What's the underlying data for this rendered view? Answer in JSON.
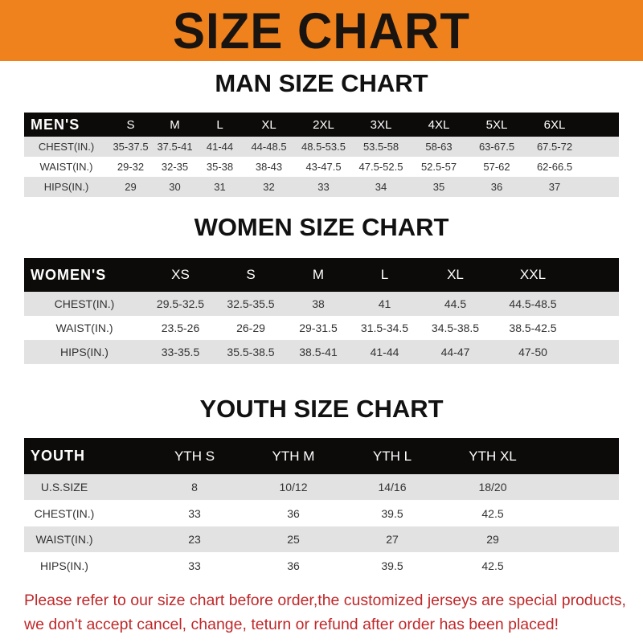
{
  "banner": {
    "title": "SIZE CHART",
    "color": "#f0821e"
  },
  "men": {
    "title": "MAN SIZE CHART",
    "header": [
      "MEN'S",
      "S",
      "M",
      "L",
      "XL",
      "2XL",
      "3XL",
      "4XL",
      "5XL",
      "6XL"
    ],
    "rows": [
      [
        "CHEST(IN.)",
        "35-37.5",
        "37.5-41",
        "41-44",
        "44-48.5",
        "48.5-53.5",
        "53.5-58",
        "58-63",
        "63-67.5",
        "67.5-72"
      ],
      [
        "WAIST(IN.)",
        "29-32",
        "32-35",
        "35-38",
        "38-43",
        "43-47.5",
        "47.5-52.5",
        "52.5-57",
        "57-62",
        "62-66.5"
      ],
      [
        "HIPS(IN.)",
        "29",
        "30",
        "31",
        "32",
        "33",
        "34",
        "35",
        "36",
        "37"
      ]
    ]
  },
  "women": {
    "title": "WOMEN SIZE CHART",
    "header": [
      "WOMEN'S",
      "XS",
      "S",
      "M",
      "L",
      "XL",
      "XXL"
    ],
    "rows": [
      [
        "CHEST(IN.)",
        "29.5-32.5",
        "32.5-35.5",
        "38",
        "41",
        "44.5",
        "44.5-48.5"
      ],
      [
        "WAIST(IN.)",
        "23.5-26",
        "26-29",
        "29-31.5",
        "31.5-34.5",
        "34.5-38.5",
        "38.5-42.5"
      ],
      [
        "HIPS(IN.)",
        "33-35.5",
        "35.5-38.5",
        "38.5-41",
        "41-44",
        "44-47",
        "47-50"
      ]
    ]
  },
  "youth": {
    "title": "YOUTH SIZE CHART",
    "header": [
      "YOUTH",
      "YTH S",
      "YTH M",
      "YTH L",
      "YTH XL"
    ],
    "rows": [
      [
        "U.S.SIZE",
        "8",
        "10/12",
        "14/16",
        "18/20"
      ],
      [
        "CHEST(IN.)",
        "33",
        "36",
        "39.5",
        "42.5"
      ],
      [
        "WAIST(IN.)",
        "23",
        "25",
        "27",
        "29"
      ],
      [
        "HIPS(IN.)",
        "33",
        "36",
        "39.5",
        "42.5"
      ]
    ]
  },
  "note": {
    "line1": "Please refer to our size chart before order,the customized jerseys are special products,",
    "line2": "we don't accept cancel, change, teturn or refund after order has been placed!",
    "color": "#c0282a"
  }
}
